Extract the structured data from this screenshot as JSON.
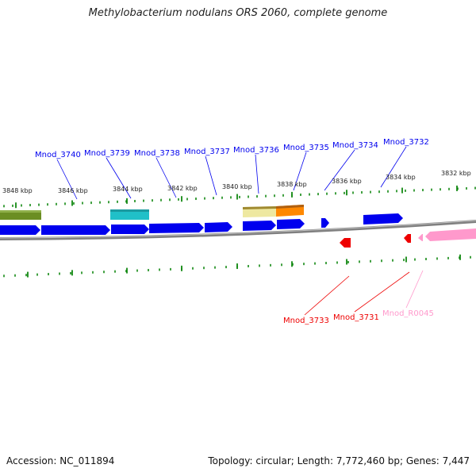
{
  "title": "Methylobacterium nodulans ORS 2060, complete genome",
  "accession": "Accession: NC_011894",
  "topology": "Topology: circular; Length: 7,772,460 bp; Genes: 7,447",
  "colors": {
    "cds_blue": "#0000ee",
    "cds_red": "#ee0000",
    "rna_pink": "#ff99cc",
    "tick_green": "#118811",
    "backbone": "#808080",
    "cog_olive": "#6b8e23",
    "cog_cyan": "#20c0c8",
    "cog_khaki": "#eee8a0",
    "cog_orange": "#ff8800"
  },
  "scale_labels": [
    "3848 kbp",
    "3846 kbp",
    "3844 kbp",
    "3842 kbp",
    "3840 kbp",
    "3838 kbp",
    "3836 kbp",
    "3834 kbp",
    "3832 kbp"
  ],
  "forward_gene_labels": [
    "Mnod_3740",
    "Mnod_3739",
    "Mnod_3738",
    "Mnod_3737",
    "Mnod_3736",
    "Mnod_3735",
    "Mnod_3734",
    "Mnod_3732"
  ],
  "reverse_gene_labels": [
    {
      "name": "Mnod_3733",
      "kind": "cds"
    },
    {
      "name": "Mnod_3731",
      "kind": "cds"
    },
    {
      "name": "Mnod_R0045",
      "kind": "rna"
    }
  ]
}
